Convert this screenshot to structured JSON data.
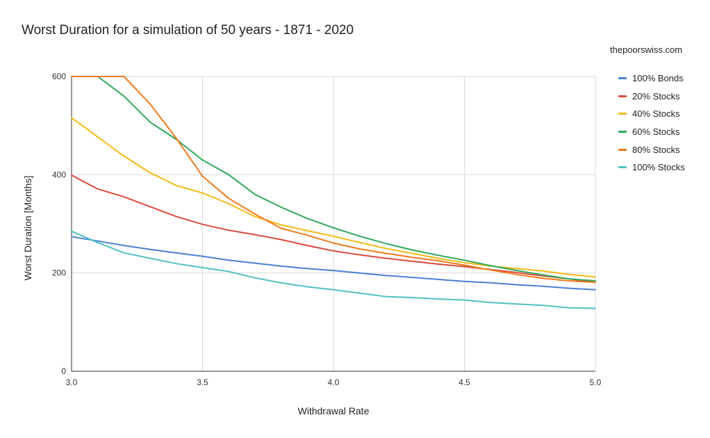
{
  "chart_data": {
    "type": "line",
    "title": "Worst Duration for a simulation of 50 years - 1871 - 2020",
    "source": "thepoorswiss.com",
    "xlabel": "Withdrawal Rate",
    "ylabel": "Worst Duration [Months]",
    "x": [
      3.0,
      3.1,
      3.2,
      3.3,
      3.4,
      3.5,
      3.6,
      3.7,
      3.8,
      3.9,
      4.0,
      4.1,
      4.2,
      4.3,
      4.4,
      4.5,
      4.6,
      4.7,
      4.8,
      4.9,
      5.0
    ],
    "xlim": [
      3.0,
      5.0
    ],
    "ylim": [
      0,
      600
    ],
    "xticks": [
      "3.0",
      "3.5",
      "4.0",
      "4.5",
      "5.0"
    ],
    "yticks": [
      "0",
      "200",
      "400",
      "600"
    ],
    "grid": true,
    "legend_position": "right",
    "series": [
      {
        "name": "100% Bonds",
        "color": "#4a7fd6",
        "values": [
          274,
          265,
          256,
          248,
          241,
          234,
          226,
          220,
          214,
          209,
          205,
          200,
          195,
          191,
          187,
          183,
          180,
          176,
          173,
          169,
          166
        ]
      },
      {
        "name": "20% Stocks",
        "color": "#dc4a3b",
        "values": [
          399,
          371,
          355,
          335,
          315,
          299,
          287,
          278,
          268,
          256,
          245,
          237,
          230,
          224,
          218,
          213,
          207,
          201,
          194,
          188,
          181
        ]
      },
      {
        "name": "40% Stocks",
        "color": "#f5b915",
        "values": [
          516,
          477,
          438,
          404,
          378,
          363,
          341,
          315,
          298,
          286,
          275,
          262,
          250,
          240,
          230,
          221,
          214,
          209,
          204,
          197,
          192
        ]
      },
      {
        "name": "60% Stocks",
        "color": "#2ea85a",
        "values": [
          600,
          600,
          560,
          507,
          472,
          430,
          400,
          360,
          334,
          311,
          292,
          275,
          260,
          247,
          236,
          226,
          215,
          205,
          196,
          188,
          184
        ]
      },
      {
        "name": "80% Stocks",
        "color": "#f07b1c",
        "values": [
          600,
          600,
          600,
          544,
          474,
          397,
          352,
          320,
          291,
          277,
          261,
          249,
          240,
          232,
          225,
          216,
          206,
          197,
          189,
          184,
          181
        ]
      },
      {
        "name": "100% Stocks",
        "color": "#52c0c4",
        "values": [
          285,
          262,
          241,
          230,
          219,
          211,
          203,
          190,
          180,
          172,
          166,
          159,
          152,
          150,
          147,
          145,
          140,
          137,
          134,
          129,
          128
        ]
      }
    ]
  }
}
